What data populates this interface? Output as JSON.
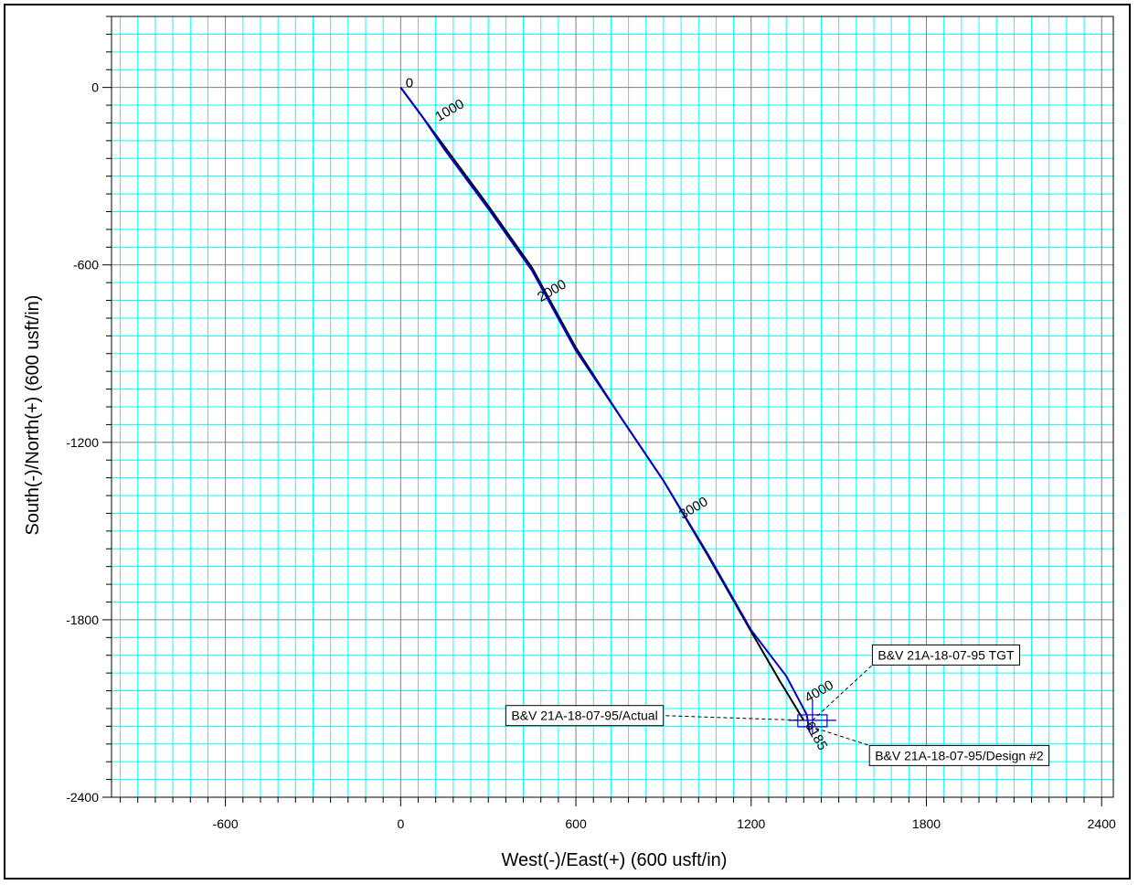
{
  "chart_data": {
    "type": "line",
    "xlabel": "West(-)/East(+) (600 usft/in)",
    "ylabel": "South(-)/North(+) (600 usft/in)",
    "xlim": [
      -990,
      2440
    ],
    "ylim": [
      -2400,
      240
    ],
    "x_ticks": [
      -600,
      0,
      600,
      1200,
      1800,
      2400
    ],
    "y_ticks": [
      0,
      -600,
      -1200,
      -1800,
      -2400
    ],
    "grid": true,
    "colors": {
      "major_grid": "#7f7f7f",
      "minor_grid": "#00ffff",
      "actual": "#000000",
      "design": "#0000cc"
    },
    "series": [
      {
        "name": "B&V 21A-18-07-95/Actual",
        "x": [
          0,
          60,
          150,
          300,
          450,
          600,
          750,
          900,
          1050,
          1200,
          1300,
          1380
        ],
        "y": [
          0,
          -80,
          -200,
          -400,
          -610,
          -880,
          -1110,
          -1330,
          -1580,
          -1840,
          -2010,
          -2140
        ]
      },
      {
        "name": "B&V 21A-18-07-95/Design #2",
        "x": [
          0,
          75,
          150,
          300,
          450,
          600,
          750,
          900,
          1050,
          1200,
          1320,
          1390,
          1400
        ],
        "y": [
          0,
          -100,
          -210,
          -410,
          -620,
          -890,
          -1110,
          -1330,
          -1575,
          -1835,
          -1990,
          -2120,
          -2180
        ]
      }
    ],
    "md_labels": [
      {
        "text": "0",
        "x": 30,
        "y": 0
      },
      {
        "text": "1000",
        "x": 175,
        "y": -90
      },
      {
        "text": "2000",
        "x": 525,
        "y": -700
      },
      {
        "text": "3000",
        "x": 1010,
        "y": -1435
      },
      {
        "text": "4000",
        "x": 1440,
        "y": -2055
      },
      {
        "text": "6185",
        "x": 1410,
        "y": -2200
      }
    ],
    "target": {
      "name": "B&V 21A-18-07-95 TGT",
      "x": 1410,
      "y": -2140
    },
    "annotations": [
      {
        "text": "B&V 21A-18-07-95 TGT",
        "anchor_x": 1410,
        "anchor_y": -2140,
        "box_x": 1615,
        "box_y": -1885
      },
      {
        "text": "B&V 21A-18-07-95/Actual",
        "anchor_x": 1380,
        "anchor_y": -2140,
        "box_x": 360,
        "box_y": -2090
      },
      {
        "text": "B&V 21A-18-07-95/Design #2",
        "anchor_x": 1400,
        "anchor_y": -2160,
        "box_x": 1605,
        "box_y": -2225
      }
    ]
  }
}
